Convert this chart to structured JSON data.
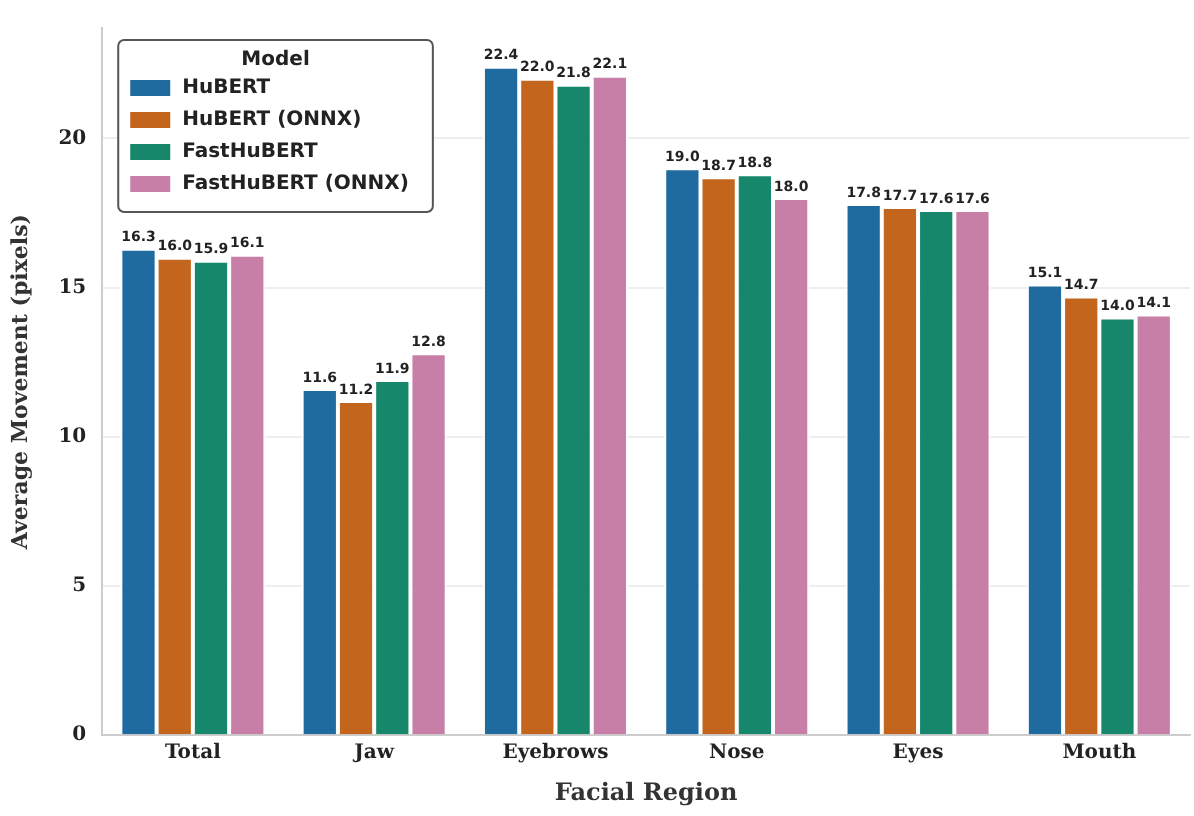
{
  "chart_data": {
    "type": "bar",
    "xlabel": "Facial Region",
    "ylabel": "Average Movement (pixels)",
    "legend_title": "Model",
    "legend": "top left",
    "grid": "y",
    "categories": [
      "Total",
      "Jaw",
      "Eyebrows",
      "Nose",
      "Eyes",
      "Mouth"
    ],
    "ylim": [
      0,
      23.7
    ],
    "yticks": [
      0,
      5,
      10,
      15,
      20
    ],
    "series": [
      {
        "name": "HuBERT",
        "color": "#1f6a9e",
        "values": [
          16.3,
          11.6,
          22.4,
          19.0,
          17.8,
          15.1
        ],
        "value_labels": [
          "16.3",
          "11.6",
          "22.4",
          "19.0",
          "17.8",
          "15.1"
        ]
      },
      {
        "name": "HuBERT (ONNX)",
        "color": "#c3651d",
        "values": [
          16.0,
          11.2,
          22.0,
          18.7,
          17.7,
          14.7
        ],
        "value_labels": [
          "16.0",
          "11.2",
          "22.0",
          "18.7",
          "17.7",
          "14.7"
        ]
      },
      {
        "name": "FastHuBERT",
        "color": "#16876a",
        "values": [
          15.9,
          11.9,
          21.8,
          18.8,
          17.6,
          14.0
        ],
        "value_labels": [
          "15.9",
          "11.9",
          "21.8",
          "18.8",
          "17.6",
          "14.0"
        ]
      },
      {
        "name": "FastHuBERT (ONNX)",
        "color": "#c77fa8",
        "values": [
          16.1,
          12.8,
          22.1,
          18.0,
          17.6,
          14.1
        ],
        "value_labels": [
          "16.1",
          "12.8",
          "22.1",
          "18.0",
          "17.6",
          "14.1"
        ]
      }
    ]
  }
}
